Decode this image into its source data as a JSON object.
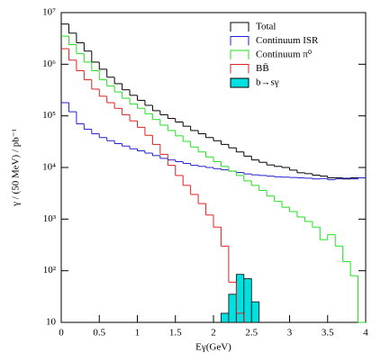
{
  "chart_data": {
    "type": "histogram",
    "xlabel": "Eγ(GeV)",
    "ylabel": "γ / (50 MeV) / pb⁻¹",
    "yscale": "log",
    "legend": "upper right",
    "xlim": [
      0,
      4
    ],
    "ylim": [
      10,
      10000000
    ],
    "xticks": [
      0,
      0.5,
      1,
      1.5,
      2,
      2.5,
      3,
      3.5,
      4
    ],
    "yticks": [
      10,
      {
        "value": 100,
        "label": "10²"
      },
      {
        "value": 1000,
        "label": "10³"
      },
      {
        "value": 10000,
        "label": "10⁴"
      },
      {
        "value": 100000,
        "label": "10⁵"
      },
      {
        "value": 1000000,
        "label": "10⁶"
      },
      {
        "value": 10000000,
        "label": "10⁷"
      }
    ],
    "bins": [
      0,
      0.1,
      0.2,
      0.3,
      0.4,
      0.5,
      0.6,
      0.7,
      0.8,
      0.9,
      1,
      1.1,
      1.2,
      1.3,
      1.4,
      1.5,
      1.6,
      1.7,
      1.8,
      1.9,
      2,
      2.1,
      2.2,
      2.3,
      2.4,
      2.5,
      2.6,
      2.7,
      2.8,
      2.9,
      3,
      3.1,
      3.2,
      3.3,
      3.4,
      3.5,
      3.6,
      3.7,
      3.8,
      3.9,
      4
    ],
    "series": [
      {
        "name": "Total",
        "color": "#000000",
        "values": [
          6000000,
          4000000,
          2600000,
          1800000,
          1100000,
          800000,
          560000,
          420000,
          320000,
          250000,
          200000,
          160000,
          126000,
          105000,
          89000,
          76000,
          63000,
          52000,
          45000,
          38000,
          33000,
          28000,
          24000,
          20000,
          16600,
          14000,
          12600,
          11200,
          10500,
          10000,
          8900,
          7900,
          7600,
          7100,
          6800,
          6300,
          6300,
          6000,
          6300,
          6300
        ]
      },
      {
        "name": "Continuum ISR",
        "color": "#2020d0",
        "values": [
          180000,
          120000,
          70000,
          55000,
          45000,
          38000,
          33000,
          29000,
          26000,
          23000,
          21000,
          19000,
          17000,
          15000,
          14000,
          13000,
          12000,
          11000,
          10500,
          10000,
          9500,
          9000,
          8500,
          8000,
          7500,
          7200,
          7000,
          6800,
          6600,
          6500,
          6400,
          6300,
          6200,
          6000,
          6100,
          5800,
          6000,
          6200,
          6000,
          6300
        ]
      },
      {
        "name": "Continuum π⁰",
        "color": "#20e020",
        "values": [
          3500000,
          2400000,
          1600000,
          1100000,
          750000,
          500000,
          380000,
          290000,
          220000,
          170000,
          140000,
          110000,
          85000,
          66000,
          52000,
          41000,
          32000,
          25000,
          20000,
          16000,
          13000,
          10500,
          8500,
          7000,
          5500,
          4500,
          3600,
          2800,
          2200,
          1700,
          1400,
          1100,
          900,
          700,
          400,
          500,
          300,
          150,
          80,
          10
        ]
      },
      {
        "name": "BB̄",
        "color": "#e02020",
        "values": [
          2000000,
          1200000,
          750000,
          500000,
          330000,
          240000,
          180000,
          140000,
          105000,
          80000,
          60000,
          42000,
          28000,
          18000,
          11000,
          7000,
          4500,
          3000,
          2000,
          1200,
          700,
          300,
          60,
          15,
          null,
          null,
          null,
          null,
          null,
          null,
          null,
          null,
          null,
          null,
          null,
          null,
          null,
          null,
          null,
          null
        ]
      },
      {
        "name": "b→sγ",
        "color": "#00e0e0",
        "fill": true,
        "values": [
          null,
          null,
          null,
          null,
          null,
          null,
          null,
          null,
          null,
          null,
          null,
          null,
          null,
          null,
          null,
          null,
          null,
          null,
          null,
          null,
          null,
          15,
          35,
          85,
          70,
          25,
          null,
          null,
          null,
          null,
          null,
          null,
          null,
          null,
          null,
          null,
          null,
          null,
          null,
          null
        ]
      }
    ]
  }
}
